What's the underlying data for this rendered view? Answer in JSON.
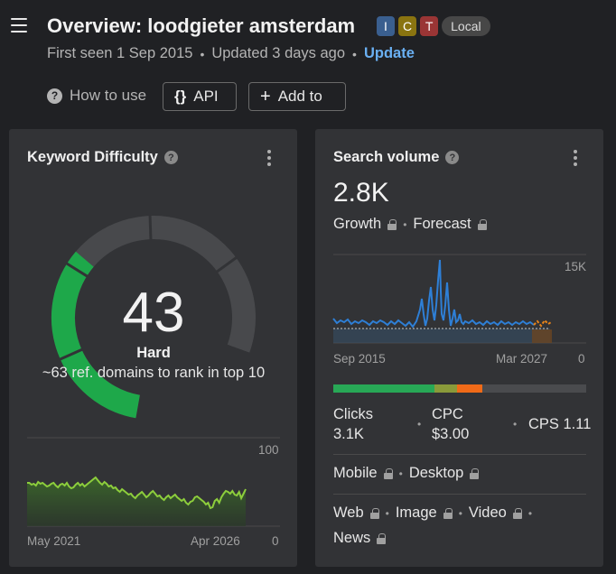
{
  "header": {
    "title": "Overview: loodgieter amsterdam",
    "badges": [
      {
        "label": "I",
        "color": "#3a5f8f"
      },
      {
        "label": "C",
        "color": "#8a7410"
      },
      {
        "label": "T",
        "color": "#9a3535"
      }
    ],
    "local_badge": "Local",
    "first_seen": "First seen 1 Sep 2015",
    "updated": "Updated 3 days ago",
    "update_link": "Update",
    "how_to_use": "How to use",
    "api_icon": "{}",
    "api_label": "API",
    "add_icon": "+",
    "add_label": "Add to"
  },
  "keyword_difficulty": {
    "title": "Keyword Difficulty",
    "value": "43",
    "level": "Hard",
    "description": "~63 ref. domains to rank in top 10",
    "trend_max": "100",
    "trend_min": "0",
    "trend_start": "May 2021",
    "trend_end": "Apr 2026",
    "colors": {
      "gauge_green": "#1ea84a",
      "gauge_yellow": "#c8c812",
      "gauge_track": "#48494c",
      "trend_line": "#8dce3c"
    }
  },
  "search_volume": {
    "title": "Search volume",
    "value": "2.8K",
    "growth": "Growth",
    "forecast": "Forecast",
    "chart_max": "15K",
    "chart_min": "0",
    "chart_start": "Sep 2015",
    "chart_end": "Mar 2027",
    "clicks_label": "Clicks",
    "clicks_value": "3.1K",
    "cpc_label": "CPC",
    "cpc_value": "$3.00",
    "cps": "CPS 1.11",
    "mobile": "Mobile",
    "desktop": "Desktop",
    "web": "Web",
    "image": "Image",
    "video": "Video",
    "news": "News",
    "colors": {
      "line": "#2e7fd6",
      "forecast": "#e8841a",
      "bar_green": "#28a856",
      "bar_olive": "#8a9a3a",
      "bar_orange": "#f06a18",
      "bar_gray": "#4a4b4e"
    }
  }
}
